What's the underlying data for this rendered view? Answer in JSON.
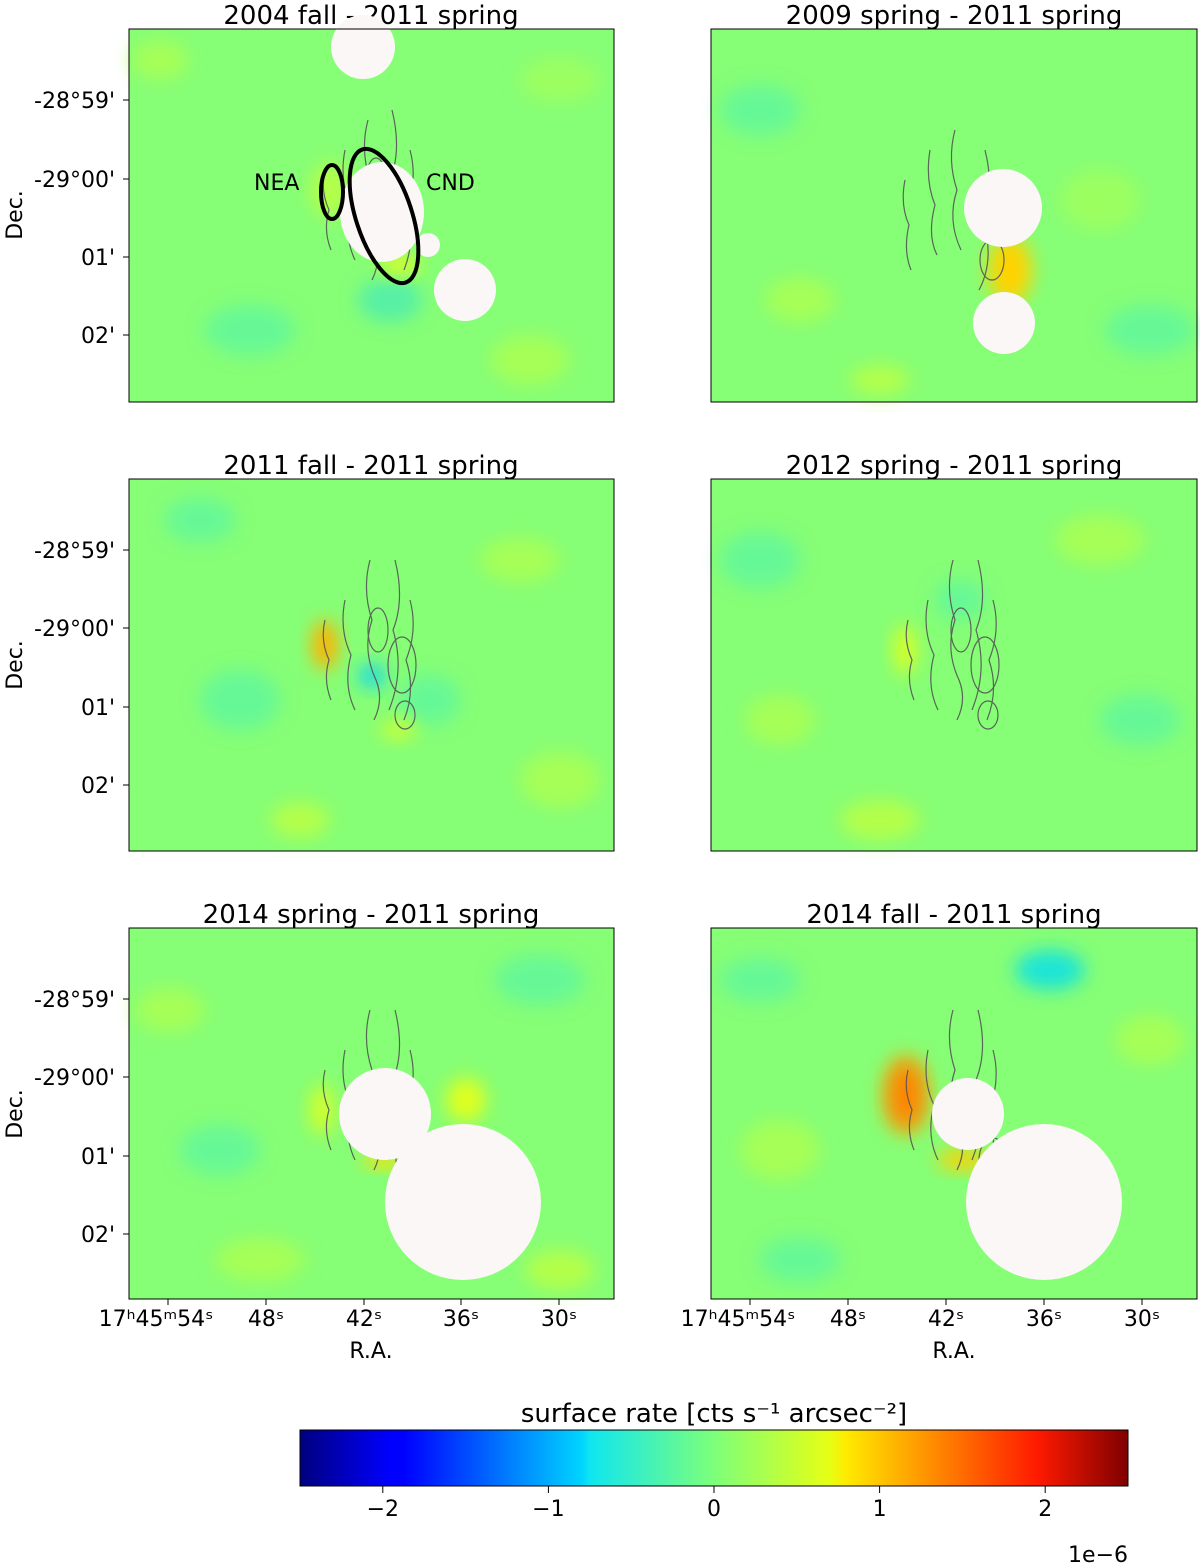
{
  "figure": {
    "colorbar": {
      "label": "surface rate [cts s⁻¹ arcsec⁻²]",
      "min": -2.5,
      "max": 2.5,
      "ticks": [
        "−2",
        "−1",
        "0",
        "1",
        "2"
      ],
      "tick_values": [
        -2,
        -1,
        0,
        1,
        2
      ],
      "multiplier": "1e−6",
      "colormap": "jet"
    }
  },
  "chart_data": [
    {
      "type": "heatmap",
      "title": "2004 fall - 2011 spring",
      "ylabel": "Dec.",
      "xlabel": "",
      "yticks": [
        "-28°59'",
        "-29°00'",
        "01'",
        "02'"
      ],
      "xticks": [],
      "annotations": [
        "NEA",
        "CND"
      ],
      "masked_regions": 4,
      "hotspots": [
        {
          "location": "bottom of CND",
          "value": 0.8
        },
        {
          "location": "NEA",
          "value": 0.4
        }
      ]
    },
    {
      "type": "heatmap",
      "title": "2009 spring - 2011 spring",
      "ylabel": "",
      "xlabel": "",
      "yticks": [],
      "xticks": [],
      "annotations": [],
      "masked_regions": 2,
      "hotspots": [
        {
          "location": "south of Sgr A*",
          "value": 0.9
        }
      ]
    },
    {
      "type": "heatmap",
      "title": "2011 fall - 2011 spring",
      "ylabel": "Dec.",
      "xlabel": "",
      "yticks": [
        "-28°59'",
        "-29°00'",
        "01'",
        "02'"
      ],
      "xticks": [],
      "annotations": [],
      "masked_regions": 0,
      "hotspots": [
        {
          "location": "NEA",
          "value": 1.1
        },
        {
          "location": "center",
          "value": -0.8
        }
      ]
    },
    {
      "type": "heatmap",
      "title": "2012 spring - 2011 spring",
      "ylabel": "",
      "xlabel": "",
      "yticks": [],
      "xticks": [],
      "annotations": [],
      "masked_regions": 0,
      "hotspots": [
        {
          "location": "NEA",
          "value": 0.6
        }
      ]
    },
    {
      "type": "heatmap",
      "title": "2014 spring - 2011 spring",
      "ylabel": "Dec.",
      "xlabel": "R.A.",
      "yticks": [
        "-28°59'",
        "-29°00'",
        "01'",
        "02'"
      ],
      "xticks": [
        "17ʰ45ᵐ54ˢ",
        "48ˢ",
        "42ˢ",
        "36ˢ",
        "30ˢ"
      ],
      "annotations": [],
      "masked_regions": 2,
      "hotspots": [
        {
          "location": "NEA",
          "value": 0.7
        },
        {
          "location": "east of CND",
          "value": 0.6
        }
      ]
    },
    {
      "type": "heatmap",
      "title": "2014 fall - 2011 spring",
      "ylabel": "",
      "xlabel": "R.A.",
      "yticks": [],
      "xticks": [
        "17ʰ45ᵐ54ˢ",
        "48ˢ",
        "42ˢ",
        "36ˢ",
        "30ˢ"
      ],
      "annotations": [],
      "masked_regions": 2,
      "hotspots": [
        {
          "location": "NEA",
          "value": 1.8
        },
        {
          "location": "south of mask",
          "value": 0.8
        }
      ]
    }
  ]
}
